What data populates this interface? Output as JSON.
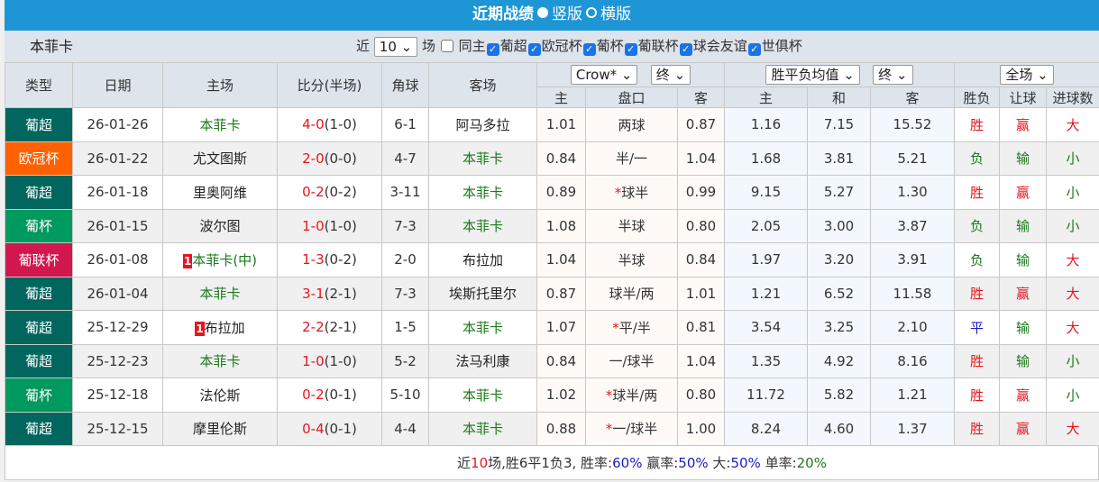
{
  "title": "近期战绩",
  "view_options": [
    {
      "label": "竖版",
      "selected": true
    },
    {
      "label": "横版",
      "selected": false
    }
  ],
  "team": "本菲卡",
  "filter": {
    "near": "近",
    "count": "10",
    "games": "场",
    "same_home": "同主",
    "leagues": [
      "葡超",
      "欧冠杯",
      "葡杯",
      "葡联杯",
      "球会友谊",
      "世俱杯"
    ]
  },
  "headers": {
    "type": "类型",
    "date": "日期",
    "home": "主场",
    "score": "比分(半场)",
    "corner": "角球",
    "away": "客场",
    "ah_company": "Crow*",
    "ah_stage": "终",
    "eu_company": "胜平负均值",
    "eu_stage": "终",
    "scope": "全场",
    "ah_home": "主",
    "ah_line": "盘口",
    "ah_away": "客",
    "eu_home": "主",
    "eu_draw": "和",
    "eu_away": "客",
    "wl": "胜负",
    "handicap": "让球",
    "goals": "进球数"
  },
  "type_colors": {
    "葡超": "#00665e",
    "欧冠杯": "#ff6100",
    "葡杯": "#00995e",
    "葡联杯": "#d2174f"
  },
  "rows": [
    {
      "type": "葡超",
      "date": "26-01-26",
      "home": "本菲卡",
      "home_rank": "",
      "score": "4-0",
      "half": "(1-0)",
      "corner": "6-1",
      "away": "阿马多拉",
      "ah": [
        "1.01",
        "",
        "两球",
        "0.87"
      ],
      "eu": [
        "1.16",
        "7.15",
        "15.52"
      ],
      "res": [
        "胜",
        "赢",
        "大"
      ]
    },
    {
      "type": "欧冠杯",
      "date": "26-01-22",
      "home": "尤文图斯",
      "home_rank": "",
      "score": "2-0",
      "half": "(0-0)",
      "corner": "4-7",
      "away": "本菲卡",
      "ah": [
        "0.84",
        "",
        "半/一",
        "1.04"
      ],
      "eu": [
        "1.68",
        "3.81",
        "5.21"
      ],
      "res": [
        "负",
        "输",
        "小"
      ]
    },
    {
      "type": "葡超",
      "date": "26-01-18",
      "home": "里奥阿维",
      "home_rank": "",
      "score": "0-2",
      "half": "(0-2)",
      "corner": "3-11",
      "away": "本菲卡",
      "ah": [
        "0.89",
        "*",
        "球半",
        "0.99"
      ],
      "eu": [
        "9.15",
        "5.27",
        "1.30"
      ],
      "res": [
        "胜",
        "赢",
        "小"
      ]
    },
    {
      "type": "葡杯",
      "date": "26-01-15",
      "home": "波尔图",
      "home_rank": "",
      "score": "1-0",
      "half": "(1-0)",
      "corner": "7-3",
      "away": "本菲卡",
      "ah": [
        "1.08",
        "",
        "半球",
        "0.80"
      ],
      "eu": [
        "2.05",
        "3.00",
        "3.87"
      ],
      "res": [
        "负",
        "输",
        "小"
      ]
    },
    {
      "type": "葡联杯",
      "date": "26-01-08",
      "home": "本菲卡(中)",
      "home_rank": "1",
      "score": "1-3",
      "half": "(0-2)",
      "corner": "2-0",
      "away": "布拉加",
      "ah": [
        "1.04",
        "",
        "半球",
        "0.84"
      ],
      "eu": [
        "1.97",
        "3.20",
        "3.91"
      ],
      "res": [
        "负",
        "输",
        "大"
      ]
    },
    {
      "type": "葡超",
      "date": "26-01-04",
      "home": "本菲卡",
      "home_rank": "",
      "score": "3-1",
      "half": "(2-1)",
      "corner": "7-3",
      "away": "埃斯托里尔",
      "ah": [
        "0.87",
        "",
        "球半/两",
        "1.01"
      ],
      "eu": [
        "1.21",
        "6.52",
        "11.58"
      ],
      "res": [
        "胜",
        "赢",
        "大"
      ]
    },
    {
      "type": "葡超",
      "date": "25-12-29",
      "home": "布拉加",
      "home_rank": "1",
      "score": "2-2",
      "half": "(2-1)",
      "corner": "1-5",
      "away": "本菲卡",
      "ah": [
        "1.07",
        "*",
        "平/半",
        "0.81"
      ],
      "eu": [
        "3.54",
        "3.25",
        "2.10"
      ],
      "res": [
        "平",
        "输",
        "大"
      ]
    },
    {
      "type": "葡超",
      "date": "25-12-23",
      "home": "本菲卡",
      "home_rank": "",
      "score": "1-0",
      "half": "(1-0)",
      "corner": "5-2",
      "away": "法马利康",
      "ah": [
        "0.84",
        "",
        "一/球半",
        "1.04"
      ],
      "eu": [
        "1.35",
        "4.92",
        "8.16"
      ],
      "res": [
        "胜",
        "输",
        "小"
      ]
    },
    {
      "type": "葡杯",
      "date": "25-12-18",
      "home": "法伦斯",
      "home_rank": "",
      "score": "0-2",
      "half": "(0-1)",
      "corner": "5-10",
      "away": "本菲卡",
      "ah": [
        "1.02",
        "*",
        "球半/两",
        "0.80"
      ],
      "eu": [
        "11.72",
        "5.82",
        "1.21"
      ],
      "res": [
        "胜",
        "赢",
        "小"
      ]
    },
    {
      "type": "葡超",
      "date": "25-12-15",
      "home": "摩里伦斯",
      "home_rank": "",
      "score": "0-4",
      "half": "(0-1)",
      "corner": "4-4",
      "away": "本菲卡",
      "ah": [
        "0.88",
        "*",
        "一/球半",
        "1.00"
      ],
      "eu": [
        "8.24",
        "4.60",
        "1.37"
      ],
      "res": [
        "胜",
        "赢",
        "大"
      ]
    }
  ],
  "summary": {
    "p1": "近",
    "n": "10",
    "p2": "场,胜6平1负3, 胜率:",
    "win": "60%",
    "p3": " 赢率:",
    "cover": "50%",
    "p4": " 大:",
    "over": "50%",
    "p5": " 单率:",
    "odd": "20%"
  }
}
